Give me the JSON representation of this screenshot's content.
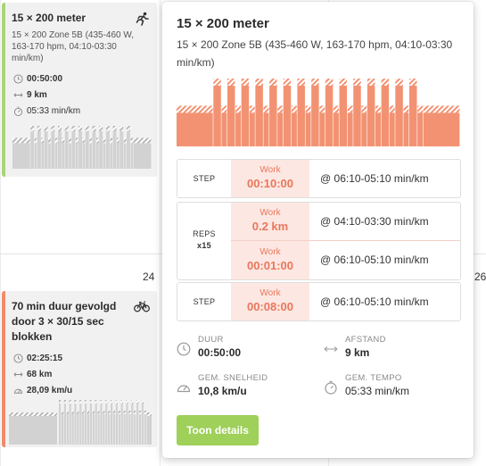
{
  "calendar": {
    "day_numbers": [
      "24",
      "26"
    ],
    "cards": [
      {
        "title": "15 × 200 meter",
        "subtitle": "15 × 200 Zone 5B (435-460 W, 163-170 hpm, 04:10-03:30 min/km)",
        "sport_icon": "running-icon",
        "accent_color": "#a8d47a",
        "stats": [
          {
            "icon": "clock-icon",
            "value": "00:50:00",
            "bold": true
          },
          {
            "icon": "distance-arrows-icon",
            "value": "9 km",
            "bold": true
          },
          {
            "icon": "stopwatch-icon",
            "value": "05:33 min/km",
            "bold": false
          }
        ]
      },
      {
        "title": "70 min duur gevolgd door 3 × 30/15 sec blokken",
        "sport_icon": "bicycle-icon",
        "accent_color": "#f08b6a",
        "stats": [
          {
            "icon": "clock-icon",
            "value": "02:25:15",
            "bold": true
          },
          {
            "icon": "distance-arrows-icon",
            "value": "68 km",
            "bold": true
          },
          {
            "icon": "speedometer-icon",
            "value": "28,09 km/u",
            "bold": true
          }
        ]
      }
    ]
  },
  "popover": {
    "title": "15 × 200 meter",
    "description": "15 × 200 Zone 5B (435-460 W, 163-170 hpm, 04:10-03:30 min/km)",
    "chart_color": "#f29272",
    "chart_data": {
      "type": "bar",
      "segments": [
        {
          "kind": "step",
          "duration": "00:10:00",
          "intensity": "low"
        },
        {
          "kind": "reps",
          "count": 15,
          "work": "0.2 km",
          "work_intensity": "high",
          "recovery": "00:01:00",
          "recovery_intensity": "low"
        },
        {
          "kind": "step",
          "duration": "00:08:00",
          "intensity": "low"
        }
      ]
    },
    "segments": [
      {
        "label": "STEP",
        "work_label": "Work",
        "work_value": "00:10:00",
        "target": "@ 06:10-05:10 min/km"
      },
      {
        "label": "REPS",
        "reps": "x15",
        "rows": [
          {
            "work_label": "Work",
            "work_value": "0.2 km",
            "target": "@ 04:10-03:30 min/km"
          },
          {
            "work_label": "Work",
            "work_value": "00:01:00",
            "target": "@ 06:10-05:10 min/km"
          }
        ]
      },
      {
        "label": "STEP",
        "work_label": "Work",
        "work_value": "00:08:00",
        "target": "@ 06:10-05:10 min/km"
      }
    ],
    "metrics": {
      "duration": {
        "label": "DUUR",
        "value": "00:50:00"
      },
      "distance": {
        "label": "AFSTAND",
        "value": "9 km"
      },
      "avg_speed": {
        "label": "GEM. SNELHEID",
        "value": "10,8 km/u"
      },
      "avg_pace": {
        "label": "GEM. TEMPO",
        "value": "05:33 min/km"
      }
    },
    "details_button": "Toon details"
  }
}
